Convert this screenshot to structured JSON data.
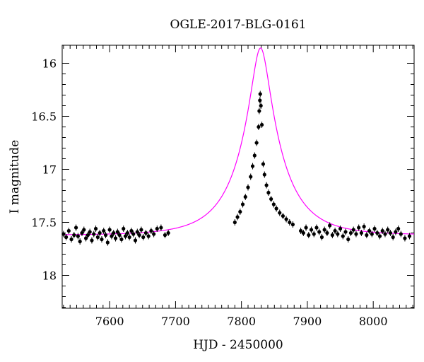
{
  "chart_data": {
    "type": "scatter",
    "title": "OGLE-2017-BLG-0161",
    "xlabel": "HJD - 2450000",
    "ylabel": "I magnitude",
    "xlim": [
      7528,
      8062
    ],
    "ylim": [
      18.31,
      15.83
    ],
    "y_inverted": true,
    "grid": false,
    "x_ticks": [
      {
        "value": 7600,
        "label": "7600"
      },
      {
        "value": 7700,
        "label": "7700"
      },
      {
        "value": 7800,
        "label": "7800"
      },
      {
        "value": 7900,
        "label": "7900"
      },
      {
        "value": 8000,
        "label": "8000"
      }
    ],
    "y_ticks": [
      {
        "value": 16,
        "label": "16"
      },
      {
        "value": 16.5,
        "label": "16.5"
      },
      {
        "value": 17,
        "label": "17"
      },
      {
        "value": 17.5,
        "label": "17.5"
      },
      {
        "value": 18,
        "label": "18"
      }
    ],
    "series": [
      {
        "kind": "points_with_errorbars",
        "color": "#000000",
        "error": 0.03,
        "points": [
          [
            7530,
            17.61
          ],
          [
            7534,
            17.64
          ],
          [
            7538,
            17.58
          ],
          [
            7542,
            17.66
          ],
          [
            7546,
            17.62
          ],
          [
            7549,
            17.55
          ],
          [
            7552,
            17.63
          ],
          [
            7555,
            17.68
          ],
          [
            7558,
            17.6
          ],
          [
            7561,
            17.57
          ],
          [
            7564,
            17.65
          ],
          [
            7567,
            17.62
          ],
          [
            7570,
            17.59
          ],
          [
            7573,
            17.67
          ],
          [
            7576,
            17.61
          ],
          [
            7579,
            17.56
          ],
          [
            7582,
            17.64
          ],
          [
            7585,
            17.6
          ],
          [
            7588,
            17.66
          ],
          [
            7591,
            17.58
          ],
          [
            7594,
            17.62
          ],
          [
            7597,
            17.69
          ],
          [
            7600,
            17.57
          ],
          [
            7603,
            17.63
          ],
          [
            7606,
            17.6
          ],
          [
            7609,
            17.65
          ],
          [
            7612,
            17.59
          ],
          [
            7615,
            17.62
          ],
          [
            7618,
            17.66
          ],
          [
            7621,
            17.56
          ],
          [
            7624,
            17.63
          ],
          [
            7627,
            17.6
          ],
          [
            7630,
            17.64
          ],
          [
            7633,
            17.58
          ],
          [
            7636,
            17.61
          ],
          [
            7639,
            17.67
          ],
          [
            7642,
            17.59
          ],
          [
            7645,
            17.62
          ],
          [
            7648,
            17.57
          ],
          [
            7651,
            17.64
          ],
          [
            7655,
            17.6
          ],
          [
            7659,
            17.63
          ],
          [
            7663,
            17.58
          ],
          [
            7667,
            17.61
          ],
          [
            7672,
            17.56
          ],
          [
            7678,
            17.55
          ],
          [
            7684,
            17.62
          ],
          [
            7689,
            17.6
          ],
          [
            7790,
            17.5
          ],
          [
            7794,
            17.45
          ],
          [
            7798,
            17.4
          ],
          [
            7802,
            17.33
          ],
          [
            7806,
            17.26
          ],
          [
            7810,
            17.17
          ],
          [
            7814,
            17.07
          ],
          [
            7817,
            16.97
          ],
          [
            7820,
            16.87
          ],
          [
            7823,
            16.75
          ],
          [
            7826,
            16.6
          ],
          [
            7827,
            16.45
          ],
          [
            7828,
            16.35
          ],
          [
            7828.5,
            16.29
          ],
          [
            7829.5,
            16.4
          ],
          [
            7831,
            16.58
          ],
          [
            7833,
            16.95
          ],
          [
            7835,
            17.05
          ],
          [
            7838,
            17.15
          ],
          [
            7841,
            17.22
          ],
          [
            7845,
            17.28
          ],
          [
            7849,
            17.33
          ],
          [
            7853,
            17.37
          ],
          [
            7858,
            17.41
          ],
          [
            7863,
            17.44
          ],
          [
            7868,
            17.47
          ],
          [
            7873,
            17.5
          ],
          [
            7878,
            17.52
          ],
          [
            7890,
            17.58
          ],
          [
            7894,
            17.6
          ],
          [
            7898,
            17.55
          ],
          [
            7902,
            17.62
          ],
          [
            7906,
            17.57
          ],
          [
            7910,
            17.61
          ],
          [
            7914,
            17.55
          ],
          [
            7918,
            17.59
          ],
          [
            7922,
            17.64
          ],
          [
            7926,
            17.57
          ],
          [
            7930,
            17.6
          ],
          [
            7934,
            17.53
          ],
          [
            7938,
            17.62
          ],
          [
            7942,
            17.58
          ],
          [
            7946,
            17.61
          ],
          [
            7950,
            17.56
          ],
          [
            7954,
            17.63
          ],
          [
            7958,
            17.59
          ],
          [
            7962,
            17.66
          ],
          [
            7966,
            17.6
          ],
          [
            7970,
            17.57
          ],
          [
            7974,
            17.61
          ],
          [
            7978,
            17.55
          ],
          [
            7982,
            17.6
          ],
          [
            7986,
            17.54
          ],
          [
            7990,
            17.62
          ],
          [
            7994,
            17.58
          ],
          [
            7998,
            17.61
          ],
          [
            8002,
            17.56
          ],
          [
            8006,
            17.6
          ],
          [
            8010,
            17.63
          ],
          [
            8014,
            17.58
          ],
          [
            8018,
            17.61
          ],
          [
            8022,
            17.57
          ],
          [
            8026,
            17.6
          ],
          [
            8030,
            17.64
          ],
          [
            8034,
            17.59
          ],
          [
            8038,
            17.56
          ],
          [
            8042,
            17.61
          ],
          [
            8048,
            17.65
          ],
          [
            8055,
            17.63
          ]
        ]
      },
      {
        "kind": "model_curve",
        "color": "#ff00ff",
        "baseline": 17.62,
        "t0": 7829,
        "tE": 65,
        "u0": 0.2
      }
    ]
  }
}
